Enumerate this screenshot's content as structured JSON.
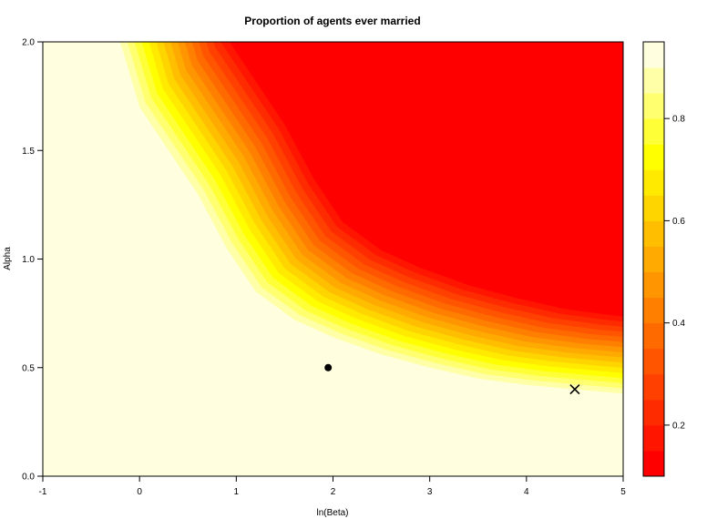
{
  "chart_data": {
    "type": "heatmap",
    "subtype": "filled-contour",
    "title": "Proportion of agents ever married",
    "xlabel": "ln(Beta)",
    "ylabel": "Alpha",
    "xlim": [
      -1,
      5
    ],
    "ylim": [
      0,
      2
    ],
    "x_ticks": [
      "-1",
      "0",
      "1",
      "2",
      "3",
      "4",
      "5"
    ],
    "y_ticks": [
      "0.0",
      "0.5",
      "1.0",
      "1.5",
      "2.0"
    ],
    "colorbar": {
      "range": [
        0.1,
        0.95
      ],
      "levels": 17,
      "ticks": [
        "0.2",
        "0.4",
        "0.6",
        "0.8"
      ],
      "palette": "heat (red → orange → yellow → pale yellow)"
    },
    "colors": {
      "low": "#ff0000",
      "mid": "#ff9900",
      "high_yellow": "#ffff00",
      "max": "#ffffe0"
    },
    "grid": false,
    "frontier": {
      "x": [
        -0.2,
        0.0,
        0.3,
        0.6,
        0.9,
        1.2,
        1.6,
        2.0,
        2.5,
        3.0,
        3.5,
        4.0,
        4.5,
        5.0
      ],
      "y": [
        2.0,
        1.7,
        1.5,
        1.3,
        1.05,
        0.85,
        0.72,
        0.64,
        0.56,
        0.5,
        0.45,
        0.42,
        0.4,
        0.38
      ]
    },
    "points": [
      {
        "marker": "dot",
        "x": 1.95,
        "y": 0.5
      },
      {
        "marker": "x",
        "x": 4.5,
        "y": 0.4
      }
    ]
  }
}
